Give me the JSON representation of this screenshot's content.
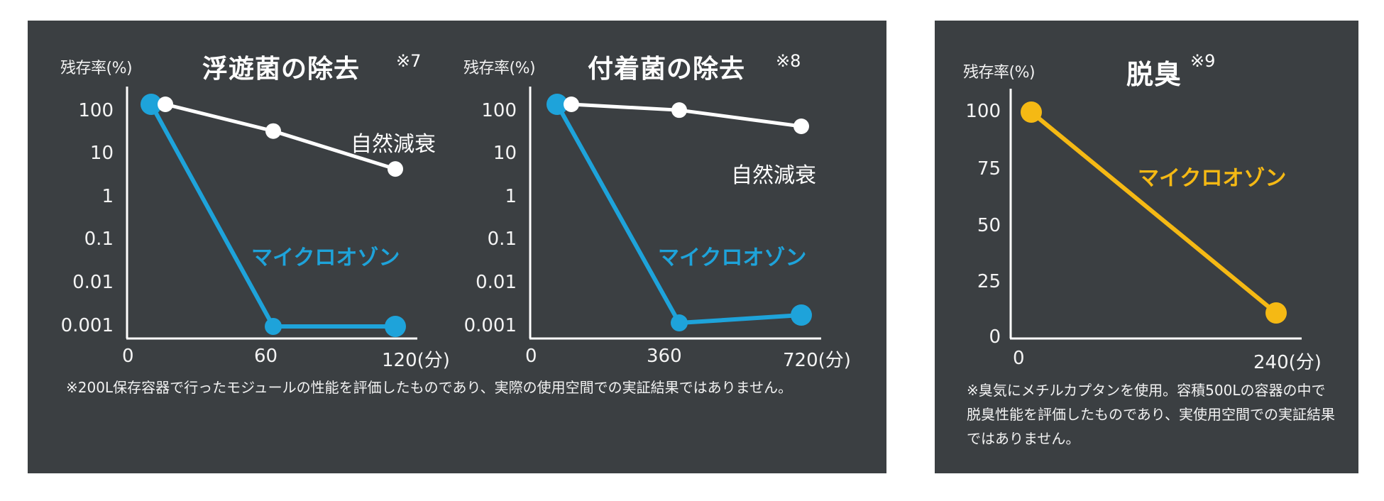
{
  "colors": {
    "page_background": "#ffffff",
    "panel_background": "#3b3f42",
    "axis": "#ffffff",
    "natural_decay": "#ffffff",
    "micro_ozone_blue": "#1ea3da",
    "micro_ozone_yellow": "#f5b914"
  },
  "chart_data": [
    {
      "type": "line",
      "title": "浮遊菌の除去",
      "note": "※7",
      "ylabel": "残存率(%)",
      "xlabel": "(分)",
      "yscale": "log",
      "ylim": [
        0.001,
        100
      ],
      "yticks": [
        "100",
        "10",
        "1",
        "0.1",
        "0.01",
        "0.001"
      ],
      "xticks": [
        "0",
        "60",
        "120(分)"
      ],
      "xlim": [
        0,
        120
      ],
      "grid": false,
      "series": [
        {
          "name": "自然減衰",
          "color": "#ffffff",
          "x": [
            0,
            60,
            120
          ],
          "values": [
            100,
            25,
            3.5
          ]
        },
        {
          "name": "マイクロオゾン",
          "color": "#1ea3da",
          "x": [
            0,
            60,
            120
          ],
          "values": [
            100,
            0.001,
            0.001
          ]
        }
      ],
      "footnote": "※200L保存容器で行ったモジュールの性能を評価したものであり、実際の使用空間での実証結果ではありません。"
    },
    {
      "type": "line",
      "title": "付着菌の除去",
      "note": "※8",
      "ylabel": "残存率(%)",
      "xlabel": "(分)",
      "yscale": "log",
      "ylim": [
        0.001,
        100
      ],
      "yticks": [
        "100",
        "10",
        "1",
        "0.1",
        "0.01",
        "0.001"
      ],
      "xticks": [
        "0",
        "360",
        "720(分)"
      ],
      "xlim": [
        0,
        720
      ],
      "grid": false,
      "series": [
        {
          "name": "自然減衰",
          "color": "#ffffff",
          "x": [
            0,
            360,
            720
          ],
          "values": [
            100,
            74,
            32
          ]
        },
        {
          "name": "マイクロオゾン",
          "color": "#1ea3da",
          "x": [
            0,
            360,
            720
          ],
          "values": [
            100,
            0.0012,
            0.0018
          ]
        }
      ]
    },
    {
      "type": "line",
      "title": "脱臭",
      "note": "※9",
      "ylabel": "残存率(%)",
      "xlabel": "(分)",
      "yscale": "linear",
      "ylim": [
        0,
        100
      ],
      "yticks": [
        "100",
        "75",
        "50",
        "25",
        "0"
      ],
      "xticks": [
        "0",
        "240(分)"
      ],
      "xlim": [
        0,
        240
      ],
      "grid": false,
      "series": [
        {
          "name": "マイクロオゾン",
          "color": "#f5b914",
          "x": [
            0,
            240
          ],
          "values": [
            100,
            11
          ]
        }
      ],
      "footnote": "※臭気にメチルカプタンを使用。容積500Lの容器の中で脱臭性能を評価したものであり、実使用空間での実証結果ではありません。"
    }
  ]
}
